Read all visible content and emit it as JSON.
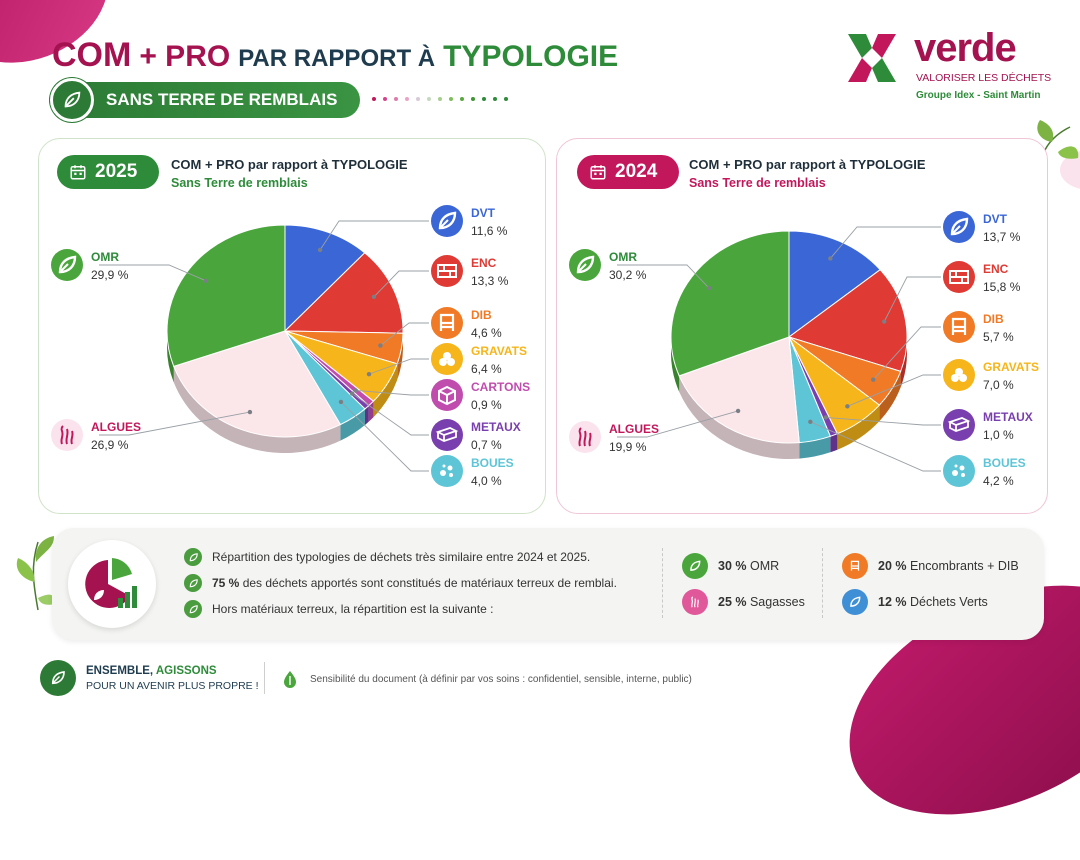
{
  "header": {
    "title_com": "COM",
    "title_plus": "+ PRO",
    "title_par": "PAR RAPPORT À",
    "title_typologie": "TYPOLOGIE",
    "subtitle": "SANS TERRE DE REMBLAIS"
  },
  "logo": {
    "name": "verde",
    "tagline": "VALORISER LES DÉCHETS",
    "group": "Groupe Idex - Saint Martin",
    "colors": [
      "#2e8b3a",
      "#a4124f"
    ]
  },
  "chart_data": [
    {
      "type": "pie",
      "year": "2025",
      "title": "COM + PRO par rapport à TYPOLOGIE",
      "subtitle": "Sans Terre de remblais",
      "slices": [
        {
          "label": "DVT",
          "value": 11.6,
          "display": "11,6 %",
          "color": "#3b66d6",
          "icon": "leaf-icon"
        },
        {
          "label": "ENC",
          "value": 13.3,
          "display": "13,3 %",
          "color": "#e03a34",
          "icon": "brick-icon"
        },
        {
          "label": "DIB",
          "value": 4.6,
          "display": "4,6 %",
          "color": "#f07a25",
          "icon": "chair-icon"
        },
        {
          "label": "GRAVATS",
          "value": 6.4,
          "display": "6,4 %",
          "color": "#f6b51a",
          "icon": "rocks-icon"
        },
        {
          "label": "CARTONS",
          "value": 0.9,
          "display": "0,9 %",
          "color": "#c04dae",
          "icon": "box-icon"
        },
        {
          "label": "METAUX",
          "value": 0.7,
          "display": "0,7 %",
          "color": "#7a3fae",
          "icon": "beam-icon"
        },
        {
          "label": "BOUES",
          "value": 4.0,
          "display": "4,0 %",
          "color": "#5ec5d6",
          "icon": "sludge-icon"
        },
        {
          "label": "ALGUES",
          "value": 26.9,
          "display": "26,9 %",
          "color": "#fbe6ea",
          "icon": "seaweed-icon"
        },
        {
          "label": "OMR",
          "value": 29.9,
          "display": "29,9 %",
          "color": "#4aa63c",
          "icon": "leaf-icon"
        }
      ]
    },
    {
      "type": "pie",
      "year": "2024",
      "title": "COM + PRO par rapport à TYPOLOGIE",
      "subtitle": "Sans Terre de remblais",
      "slices": [
        {
          "label": "DVT",
          "value": 13.7,
          "display": "13,7 %",
          "color": "#3b66d6",
          "icon": "leaf-icon"
        },
        {
          "label": "ENC",
          "value": 15.8,
          "display": "15,8 %",
          "color": "#e03a34",
          "icon": "brick-icon"
        },
        {
          "label": "DIB",
          "value": 5.7,
          "display": "5,7 %",
          "color": "#f07a25",
          "icon": "chair-icon"
        },
        {
          "label": "GRAVATS",
          "value": 7.0,
          "display": "7,0 %",
          "color": "#f6b51a",
          "icon": "rocks-icon"
        },
        {
          "label": "METAUX",
          "value": 1.0,
          "display": "1,0 %",
          "color": "#7a3fae",
          "icon": "beam-icon"
        },
        {
          "label": "BOUES",
          "value": 4.2,
          "display": "4,2 %",
          "color": "#5ec5d6",
          "icon": "sludge-icon"
        },
        {
          "label": "ALGUES",
          "value": 19.9,
          "display": "19,9 %",
          "color": "#fbe6ea",
          "icon": "seaweed-icon"
        },
        {
          "label": "OMR",
          "value": 30.2,
          "display": "30,2 %",
          "color": "#4aa63c",
          "icon": "leaf-icon"
        }
      ]
    }
  ],
  "summary": {
    "bullets": [
      {
        "bold": "",
        "text": "Répartition des typologies de déchets très similaire entre 2024 et 2025."
      },
      {
        "bold": "75 %",
        "text": " des déchets apportés sont constitués de matériaux terreux de remblai."
      },
      {
        "bold": "",
        "text": "Hors matériaux terreux, la répartition est la suivante :"
      }
    ],
    "stats": [
      {
        "bold": "30 %",
        "text": " OMR",
        "color": "#4aa63c",
        "icon": "leaf-icon"
      },
      {
        "bold": "20 %",
        "text": " Encombrants + DIB",
        "color": "#f07a25",
        "icon": "chair-icon"
      },
      {
        "bold": "25 %",
        "text": " Sagasses",
        "color": "#e0579a",
        "icon": "seaweed-icon"
      },
      {
        "bold": "12 %",
        "text": " Déchets Verts",
        "color": "#3f8fd6",
        "icon": "leaf-icon"
      }
    ]
  },
  "footer": {
    "line1_a": "ENSEMBLE,",
    "line1_b": "AGISSONS",
    "line2": "POUR UN AVENIR PLUS PROPRE !",
    "sensitivity": "Sensibilité du document (à définir par vos soins : confidentiel, sensible, interne, public)"
  }
}
